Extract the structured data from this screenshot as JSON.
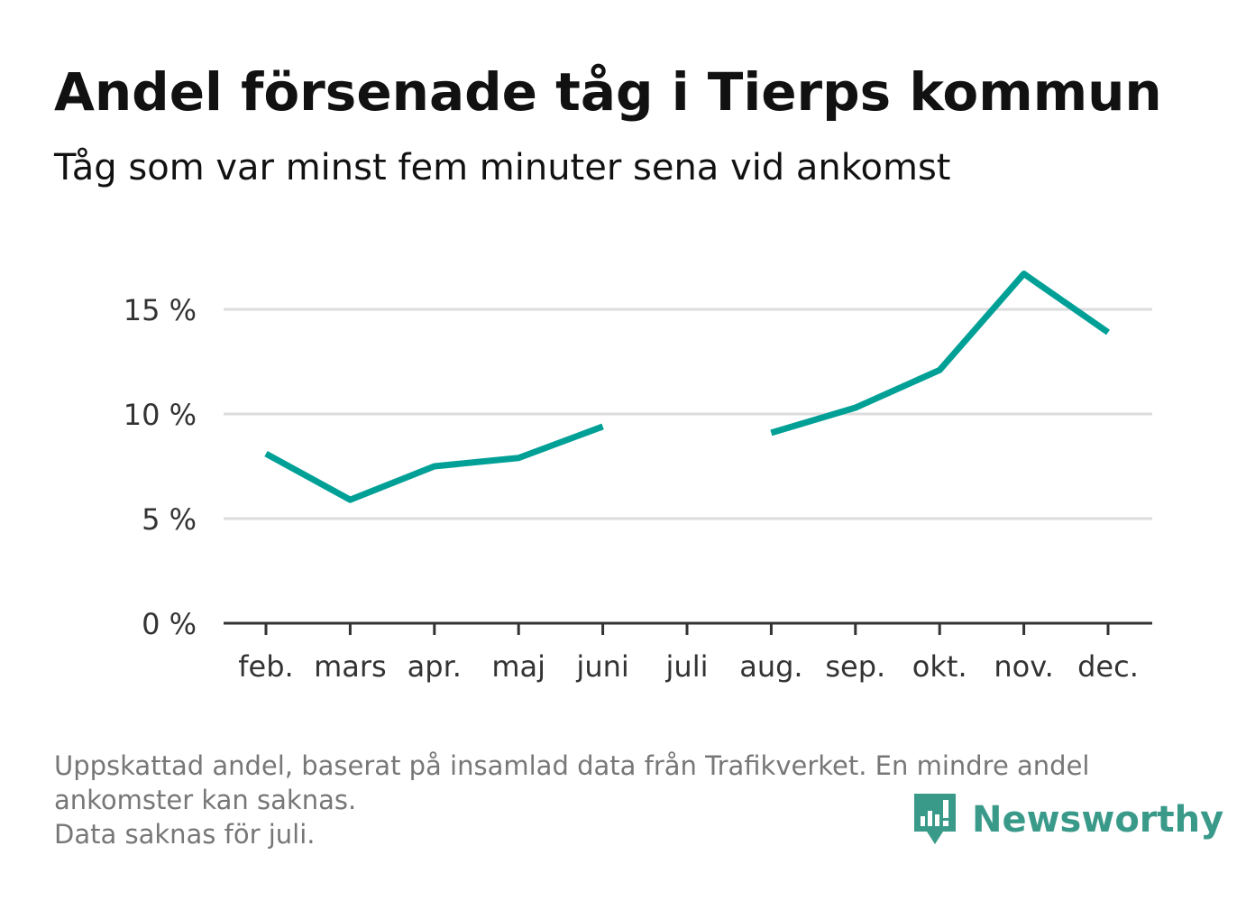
{
  "title": "Andel försenade tåg i Tierps kommun",
  "subtitle": "Tåg som var minst fem minuter sena vid ankomst",
  "footnote": {
    "line1": "Uppskattad andel, baserat på insamlad data från Trafikverket. En mindre andel",
    "line2": "ankomster kan saknas.",
    "line3": "Data saknas för juli."
  },
  "brand": {
    "name": "Newsworthy",
    "icon": "newsworthy-logo-icon",
    "color": "#3a9a8a"
  },
  "chart_data": {
    "type": "line",
    "title": "Andel försenade tåg i Tierps kommun",
    "subtitle": "Tåg som var minst fem minuter sena vid ankomst",
    "categories": [
      "feb.",
      "mars",
      "apr.",
      "maj",
      "juni",
      "juli",
      "aug.",
      "sep.",
      "okt.",
      "nov.",
      "dec."
    ],
    "series": [
      {
        "values": [
          8.1,
          5.9,
          7.5,
          7.9,
          9.4,
          null,
          9.1,
          10.3,
          12.1,
          16.7,
          13.9
        ],
        "color": "#00a096"
      }
    ],
    "yticks": [
      0,
      5,
      10,
      15
    ],
    "ytick_labels": [
      "0 %",
      "5 %",
      "10 %",
      "15 %"
    ],
    "ylim": [
      0,
      17.5
    ],
    "grid": true,
    "colors": {
      "line": "#00a096",
      "grid": "#dddddd",
      "axis": "#333333"
    }
  }
}
